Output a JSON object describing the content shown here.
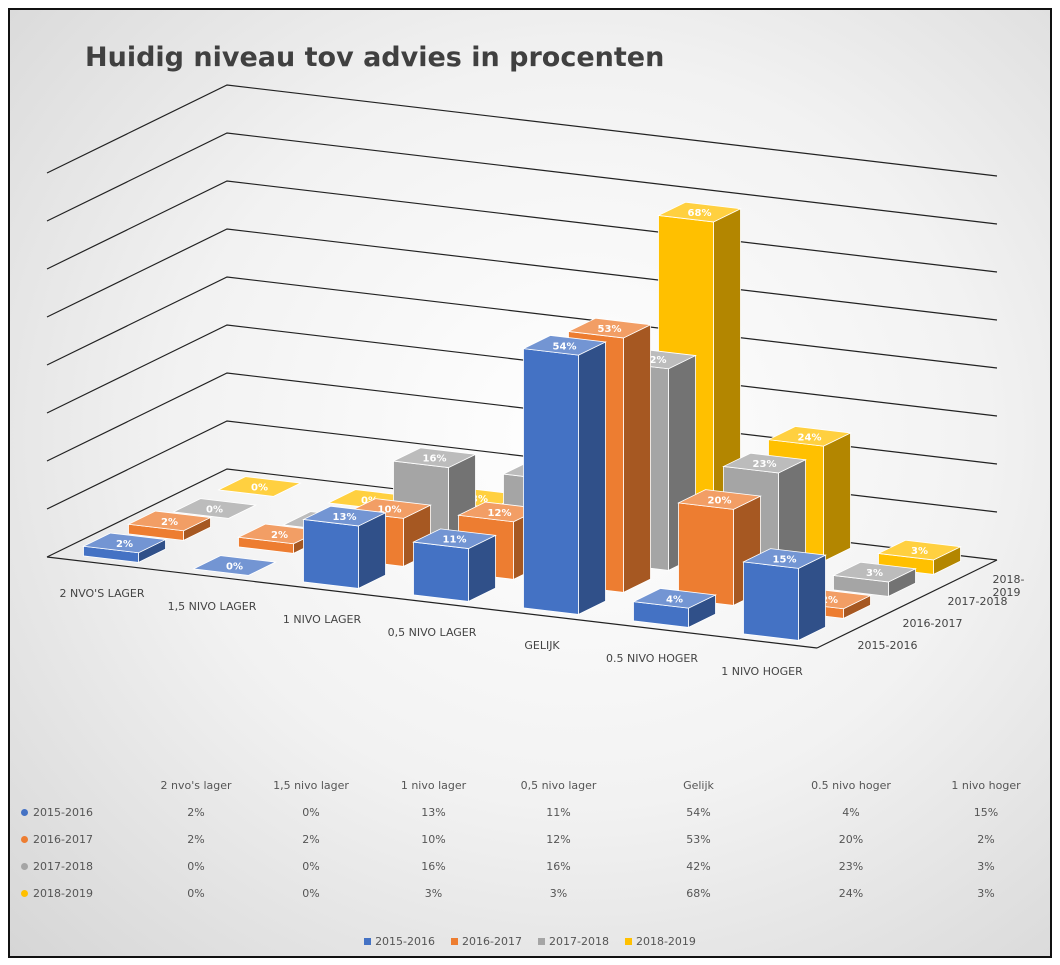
{
  "chart_data": {
    "type": "bar3d",
    "title": "Huidig niveau tov advies in procenten",
    "categories": [
      "2 NVO'S LAGER",
      "1,5 NIVO LAGER",
      "1 NIVO LAGER",
      "0,5 NIVO LAGER",
      "GELIJK",
      "0.5 NIVO HOGER",
      "1 NIVO HOGER"
    ],
    "table_columns": [
      "2 nvo's lager",
      "1,5 nivo lager",
      "1 nivo lager",
      "0,5 nivo lager",
      "Gelijk",
      "0.5 nivo hoger",
      "1 nivo hoger"
    ],
    "series": [
      {
        "name": "2015-2016",
        "color": "#4472c4",
        "values": [
          2,
          0,
          13,
          11,
          54,
          4,
          15
        ],
        "value_labels": [
          "2%",
          "0%",
          "13%",
          "11%",
          "54%",
          "4%",
          "15%"
        ]
      },
      {
        "name": "2016-2017",
        "color": "#ed7d31",
        "values": [
          2,
          2,
          10,
          12,
          53,
          20,
          2
        ],
        "value_labels": [
          "2%",
          "2%",
          "10%",
          "12%",
          "53%",
          "20%",
          "2%"
        ]
      },
      {
        "name": "2017-2018",
        "color": "#a5a5a5",
        "values": [
          0,
          0,
          16,
          16,
          42,
          23,
          3
        ],
        "value_labels": [
          "0%",
          "0%",
          "16%",
          "16%",
          "42%",
          "23%",
          "3%"
        ]
      },
      {
        "name": "2018-2019",
        "color": "#ffc000",
        "values": [
          0,
          0,
          3,
          3,
          68,
          24,
          3
        ],
        "value_labels": [
          "0%",
          "0%",
          "3%",
          "3%",
          "68%",
          "24%",
          "3%"
        ]
      }
    ],
    "ylim": [
      0,
      80
    ],
    "yticks": [
      0,
      10,
      20,
      30,
      40,
      50,
      60,
      70,
      80
    ],
    "grid": true
  }
}
